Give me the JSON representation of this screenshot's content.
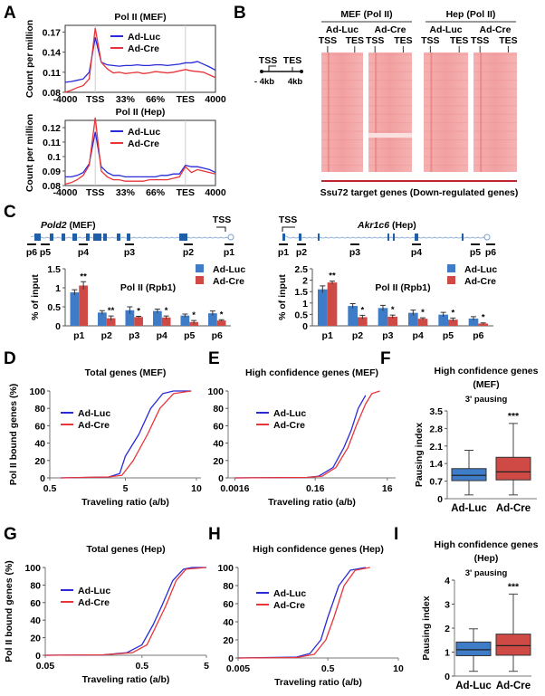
{
  "panel_labels": [
    "A",
    "B",
    "C",
    "D",
    "E",
    "F",
    "G",
    "H",
    "I"
  ],
  "colors": {
    "ad_luc_line": "#2a2ad8",
    "ad_cre_line": "#e8353a",
    "ad_luc_bar": "#3f7cc8",
    "ad_cre_bar": "#d04a45",
    "heatmap": "#f2a3a3",
    "underline_red": "#c0232b"
  },
  "heatmap": {
    "groups": [
      "MEF (Pol II)",
      "Hep (Pol II)"
    ],
    "columns": [
      "Ad-Luc",
      "Ad-Cre",
      "Ad-Luc",
      "Ad-Cre"
    ],
    "tss": "TSS",
    "tes": "TES",
    "schematic": {
      "tss": "TSS",
      "tes": "TES",
      "left": "- 4kb",
      "right": "4kb"
    },
    "caption": "Ssu72 target genes (Down-regulated genes)"
  },
  "genes": {
    "mef": {
      "name": "Pold2",
      "cell": " (MEF)",
      "tss": "TSS",
      "probes": [
        "p6",
        "p5",
        "p4",
        "p3",
        "p2",
        "p1"
      ]
    },
    "hep": {
      "name": "Akr1c6",
      "cell": " (Hep)",
      "tss": "TSS",
      "probes": [
        "p1",
        "p2",
        "p3",
        "p4",
        "p5",
        "p6"
      ]
    }
  },
  "chart_data": [
    {
      "type": "line",
      "title": "Pol II (MEF)",
      "ylabel": "Count per million",
      "x_ticks": [
        "-4000",
        "TSS",
        "33%",
        "66%",
        "TES",
        "4000"
      ],
      "y_ticks": [
        "0.08",
        "0.11",
        "0.14",
        "0.17"
      ],
      "ylim": [
        0.08,
        0.18
      ],
      "series": [
        {
          "name": "Ad-Luc",
          "values": [
            0.095,
            0.096,
            0.098,
            0.1,
            0.11,
            0.162,
            0.125,
            0.121,
            0.12,
            0.119,
            0.12,
            0.12,
            0.121,
            0.12,
            0.12,
            0.121,
            0.121,
            0.12,
            0.121,
            0.122,
            0.124,
            0.124,
            0.126,
            0.122,
            0.118,
            0.113
          ]
        },
        {
          "name": "Ad-Cre",
          "values": [
            0.08,
            0.083,
            0.087,
            0.09,
            0.1,
            0.176,
            0.125,
            0.115,
            0.109,
            0.11,
            0.108,
            0.109,
            0.11,
            0.108,
            0.109,
            0.111,
            0.11,
            0.109,
            0.11,
            0.112,
            0.114,
            0.112,
            0.111,
            0.11,
            0.106,
            0.102
          ]
        }
      ]
    },
    {
      "type": "line",
      "title": "Pol II (Hep)",
      "ylabel": "Count per million",
      "x_ticks": [
        "-4000",
        "TSS",
        "33%",
        "66%",
        "TES",
        "4000"
      ],
      "y_ticks": [
        "0.08",
        "0.09",
        "0.1",
        "0.11",
        "0.12"
      ],
      "ylim": [
        0.08,
        0.125
      ],
      "series": [
        {
          "name": "Ad-Luc",
          "values": [
            0.086,
            0.086,
            0.087,
            0.089,
            0.095,
            0.117,
            0.093,
            0.089,
            0.087,
            0.087,
            0.086,
            0.086,
            0.086,
            0.086,
            0.086,
            0.086,
            0.087,
            0.087,
            0.088,
            0.088,
            0.094,
            0.093,
            0.093,
            0.092,
            0.091,
            0.089
          ]
        },
        {
          "name": "Ad-Cre",
          "values": [
            0.081,
            0.082,
            0.084,
            0.087,
            0.094,
            0.127,
            0.09,
            0.086,
            0.084,
            0.084,
            0.083,
            0.083,
            0.083,
            0.083,
            0.084,
            0.084,
            0.084,
            0.084,
            0.085,
            0.086,
            0.093,
            0.089,
            0.091,
            0.09,
            0.089,
            0.088
          ]
        }
      ]
    },
    {
      "type": "bar",
      "title": "Pol II (Rpb1)",
      "ylabel": "% of input",
      "categories": [
        "p1",
        "p2",
        "p3",
        "p4",
        "p5",
        "p6"
      ],
      "y_ticks": [
        "0",
        "0.5",
        "1",
        "1.5"
      ],
      "ylim": [
        0,
        1.5
      ],
      "series": [
        {
          "name": "Ad-Luc",
          "values": [
            0.88,
            0.35,
            0.41,
            0.39,
            0.27,
            0.33
          ],
          "errors": [
            0.07,
            0.05,
            0.09,
            0.05,
            0.04,
            0.06
          ]
        },
        {
          "name": "Ad-Cre",
          "values": [
            1.06,
            0.2,
            0.23,
            0.22,
            0.1,
            0.14
          ],
          "errors": [
            0.1,
            0.06,
            0.02,
            0.04,
            0.04,
            0.02
          ],
          "significance": [
            "**",
            "**",
            "*",
            "*",
            "*",
            "*"
          ]
        }
      ]
    },
    {
      "type": "bar",
      "title": "Pol II (Rpb1)",
      "ylabel": "% of input",
      "categories": [
        "p1",
        "p2",
        "p3",
        "p4",
        "p5",
        "p6"
      ],
      "y_ticks": [
        "0",
        "0.5",
        "1",
        "1.5",
        "2",
        "2.5"
      ],
      "ylim": [
        0,
        2.5
      ],
      "series": [
        {
          "name": "Ad-Luc",
          "values": [
            1.6,
            0.87,
            0.78,
            0.57,
            0.49,
            0.32
          ],
          "errors": [
            0.15,
            0.1,
            0.12,
            0.12,
            0.1,
            0.08
          ]
        },
        {
          "name": "Ad-Cre",
          "values": [
            1.9,
            0.38,
            0.4,
            0.31,
            0.27,
            0.1
          ],
          "errors": [
            0.06,
            0.08,
            0.07,
            0.04,
            0.07,
            0.03
          ],
          "significance": [
            "**",
            "*",
            "*",
            "*",
            "*",
            "*"
          ]
        }
      ]
    },
    {
      "type": "line",
      "title": "Total genes (MEF)",
      "xlabel": "Traveling ratio (a/b)",
      "ylabel": "Pol II bound genes (%)",
      "x_ticks": [
        0.5,
        5,
        10
      ],
      "y_ticks": [
        0,
        20,
        40,
        60,
        80,
        100
      ],
      "ylim": [
        0,
        100
      ],
      "series": [
        {
          "name": "Ad-Luc",
          "points": [
            [
              0.7,
              0
            ],
            [
              3,
              1
            ],
            [
              4.2,
              5
            ],
            [
              5,
              25
            ],
            [
              5.7,
              50
            ],
            [
              6.4,
              80
            ],
            [
              7.2,
              97
            ],
            [
              8,
              100
            ],
            [
              9.5,
              100
            ]
          ]
        },
        {
          "name": "Ad-Cre",
          "points": [
            [
              0.7,
              0
            ],
            [
              3,
              1
            ],
            [
              4.5,
              3
            ],
            [
              5.4,
              20
            ],
            [
              6.2,
              50
            ],
            [
              7,
              80
            ],
            [
              8,
              97
            ],
            [
              9.5,
              100
            ]
          ]
        }
      ]
    },
    {
      "type": "line",
      "title": "High confidence genes (MEF)",
      "xlabel": "Traveling ratio (a/b)",
      "ylabel": "",
      "x_ticks": [
        0.0016,
        0.16,
        16
      ],
      "y_ticks": [
        0,
        20,
        40,
        60,
        80,
        100
      ],
      "ylim": [
        0,
        100
      ],
      "series": [
        {
          "name": "Ad-Luc",
          "points": [
            [
              0.0016,
              0
            ],
            [
              0.1,
              0.5
            ],
            [
              0.2,
              2
            ],
            [
              0.5,
              12
            ],
            [
              1.0,
              35
            ],
            [
              1.6,
              55
            ],
            [
              2.5,
              80
            ],
            [
              4,
              95
            ]
          ]
        },
        {
          "name": "Ad-Cre",
          "points": [
            [
              0.0016,
              0
            ],
            [
              0.1,
              0.5
            ],
            [
              0.25,
              2
            ],
            [
              0.6,
              12
            ],
            [
              1.3,
              35
            ],
            [
              2.2,
              60
            ],
            [
              4,
              85
            ],
            [
              6,
              97
            ],
            [
              10,
              100
            ]
          ]
        }
      ]
    },
    {
      "type": "box",
      "title": "High confidence genes",
      "title2": "(MEF)",
      "subtitle": "3' pausing",
      "ylabel": "Pausing index",
      "categories": [
        "Ad-Luc",
        "Ad-Cre"
      ],
      "y_ticks": [
        "0",
        "0.7",
        "1.4",
        "2.1",
        "2.8",
        "3.5"
      ],
      "ylim": [
        0,
        3.5
      ],
      "boxes": [
        {
          "min": 0.15,
          "q1": 0.72,
          "median": 0.93,
          "q3": 1.2,
          "max": 1.93
        },
        {
          "min": 0.15,
          "q1": 0.75,
          "median": 1.07,
          "q3": 1.65,
          "max": 3.0
        }
      ],
      "significance": "***"
    },
    {
      "type": "line",
      "title": "Total genes (Hep)",
      "xlabel": "Traveling ratio (a/b)",
      "ylabel": "Pol II bound genes (%)",
      "x_ticks": [
        0.05,
        0.5,
        5
      ],
      "y_ticks": [
        0,
        20,
        40,
        60,
        80,
        100
      ],
      "ylim": [
        0,
        100
      ],
      "series": [
        {
          "name": "Ad-Luc",
          "points": [
            [
              0.05,
              0
            ],
            [
              0.2,
              0.5
            ],
            [
              0.35,
              3
            ],
            [
              0.5,
              12
            ],
            [
              0.75,
              35
            ],
            [
              1.0,
              55
            ],
            [
              1.5,
              85
            ],
            [
              2.2,
              98
            ],
            [
              3,
              100
            ],
            [
              5,
              100
            ]
          ]
        },
        {
          "name": "Ad-Cre",
          "points": [
            [
              0.05,
              0
            ],
            [
              0.2,
              0.5
            ],
            [
              0.4,
              3
            ],
            [
              0.6,
              12
            ],
            [
              0.85,
              35
            ],
            [
              1.15,
              55
            ],
            [
              1.7,
              85
            ],
            [
              2.4,
              98
            ],
            [
              5,
              100
            ]
          ]
        }
      ]
    },
    {
      "type": "line",
      "title": "High confidence genes (Hep)",
      "xlabel": "Traveling ratio (a/b)",
      "ylabel": "",
      "x_ticks": [
        0.005,
        0.5,
        10
      ],
      "y_ticks": [
        0,
        20,
        40,
        60,
        80,
        100
      ],
      "ylim": [
        0,
        100
      ],
      "series": [
        {
          "name": "Ad-Luc",
          "points": [
            [
              0.005,
              0
            ],
            [
              0.1,
              1
            ],
            [
              0.2,
              5
            ],
            [
              0.35,
              20
            ],
            [
              0.5,
              45
            ],
            [
              0.8,
              80
            ],
            [
              1.3,
              97
            ],
            [
              2.5,
              100
            ]
          ]
        },
        {
          "name": "Ad-Cre",
          "points": [
            [
              0.005,
              0
            ],
            [
              0.1,
              0.5
            ],
            [
              0.25,
              4
            ],
            [
              0.45,
              20
            ],
            [
              0.65,
              45
            ],
            [
              1.0,
              80
            ],
            [
              1.6,
              97
            ],
            [
              3,
              100
            ]
          ]
        }
      ]
    },
    {
      "type": "box",
      "title": "High confidence genes",
      "title2": "(Hep)",
      "subtitle": "3' pausing",
      "ylabel": "Pausing index",
      "categories": [
        "Ad-Luc",
        "Ad-Cre"
      ],
      "y_ticks": [
        "0",
        "1",
        "2",
        "3",
        "4"
      ],
      "ylim": [
        0,
        4
      ],
      "boxes": [
        {
          "min": 0.2,
          "q1": 0.85,
          "median": 1.1,
          "q3": 1.42,
          "max": 1.97
        },
        {
          "min": 0.2,
          "q1": 0.87,
          "median": 1.27,
          "q3": 1.75,
          "max": 3.42
        }
      ],
      "significance": "***"
    }
  ]
}
